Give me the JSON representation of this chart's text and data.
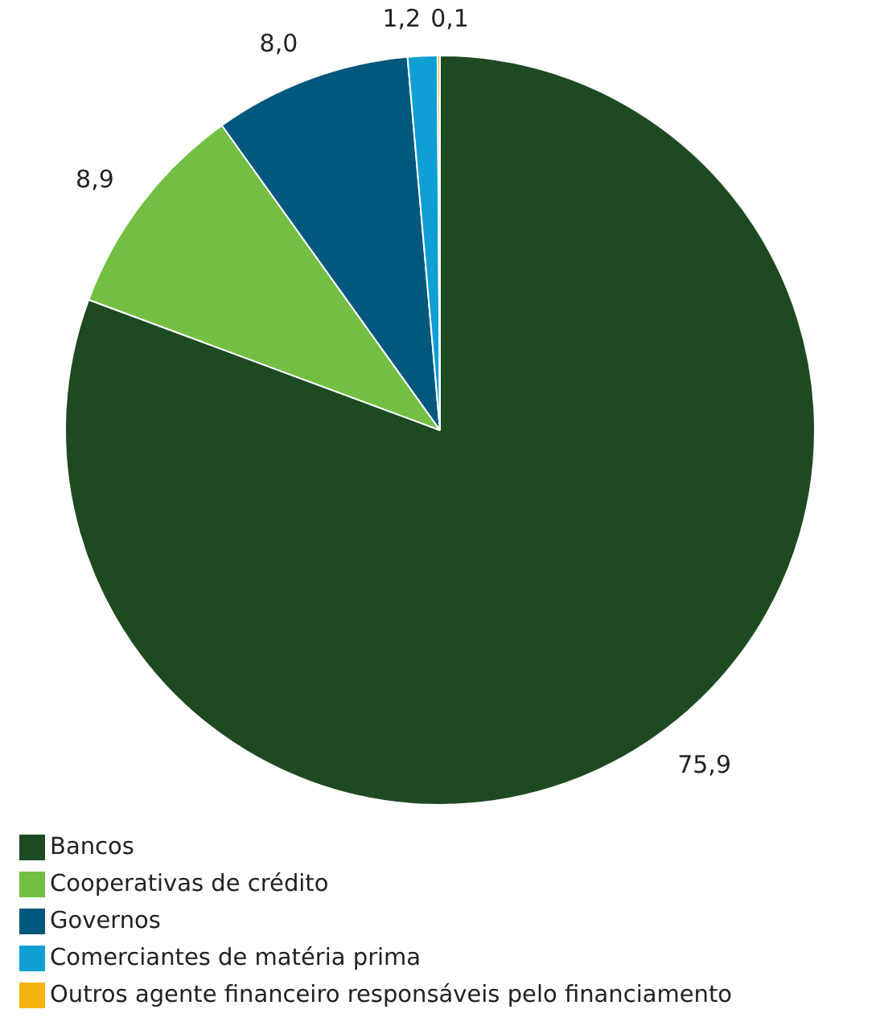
{
  "chart_data": {
    "type": "pie",
    "categories": [
      "Bancos",
      "Cooperativas de crédito",
      "Governos",
      "Comerciantes de matéria prima",
      "Outros agente financeiro responsáveis pelo financiamento"
    ],
    "values": [
      75.9,
      8.9,
      8.0,
      1.2,
      0.1
    ],
    "colors": [
      "#1e4a22",
      "#72bf44",
      "#00587c",
      "#0e9fd4",
      "#f6b50e"
    ],
    "value_labels": [
      "75,9",
      "8,9",
      "8,0",
      "1,2",
      "0,1"
    ],
    "legend": "bottom"
  }
}
